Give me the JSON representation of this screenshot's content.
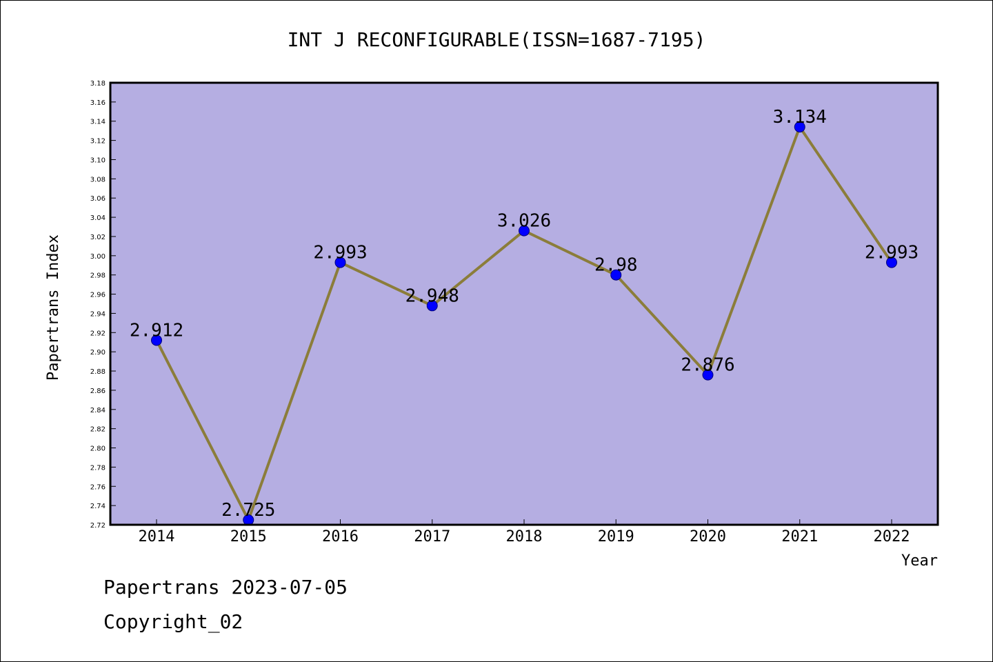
{
  "chart_data": {
    "type": "line",
    "title": "INT J RECONFIGURABLE(ISSN=1687-7195)",
    "xlabel": "Year",
    "ylabel": "Papertrans Index",
    "categories": [
      "2014",
      "2015",
      "2016",
      "2017",
      "2018",
      "2019",
      "2020",
      "2021",
      "2022"
    ],
    "values": [
      2.912,
      2.725,
      2.993,
      2.948,
      3.026,
      2.98,
      2.876,
      3.134,
      2.993
    ],
    "data_labels": [
      "2.912",
      "2.725",
      "2.993",
      "2.948",
      "3.026",
      "2.98",
      "2.876",
      "3.134",
      "2.993"
    ],
    "ylim": [
      2.72,
      3.18
    ],
    "yticks": [
      "2.72",
      "2.74",
      "2.76",
      "2.78",
      "2.80",
      "2.82",
      "2.84",
      "2.86",
      "2.88",
      "2.90",
      "2.92",
      "2.94",
      "2.96",
      "2.98",
      "3.00",
      "3.02",
      "3.04",
      "3.06",
      "3.08",
      "3.10",
      "3.12",
      "3.14",
      "3.16",
      "3.18"
    ],
    "grid": false,
    "legend": "none",
    "colors": {
      "plot_background": "#b5aee2",
      "line": "#8b7d3a",
      "marker": "#0000ff",
      "axes": "#000000"
    }
  },
  "footer": {
    "line1": "Papertrans 2023-07-05",
    "line2": "Copyright_02"
  }
}
